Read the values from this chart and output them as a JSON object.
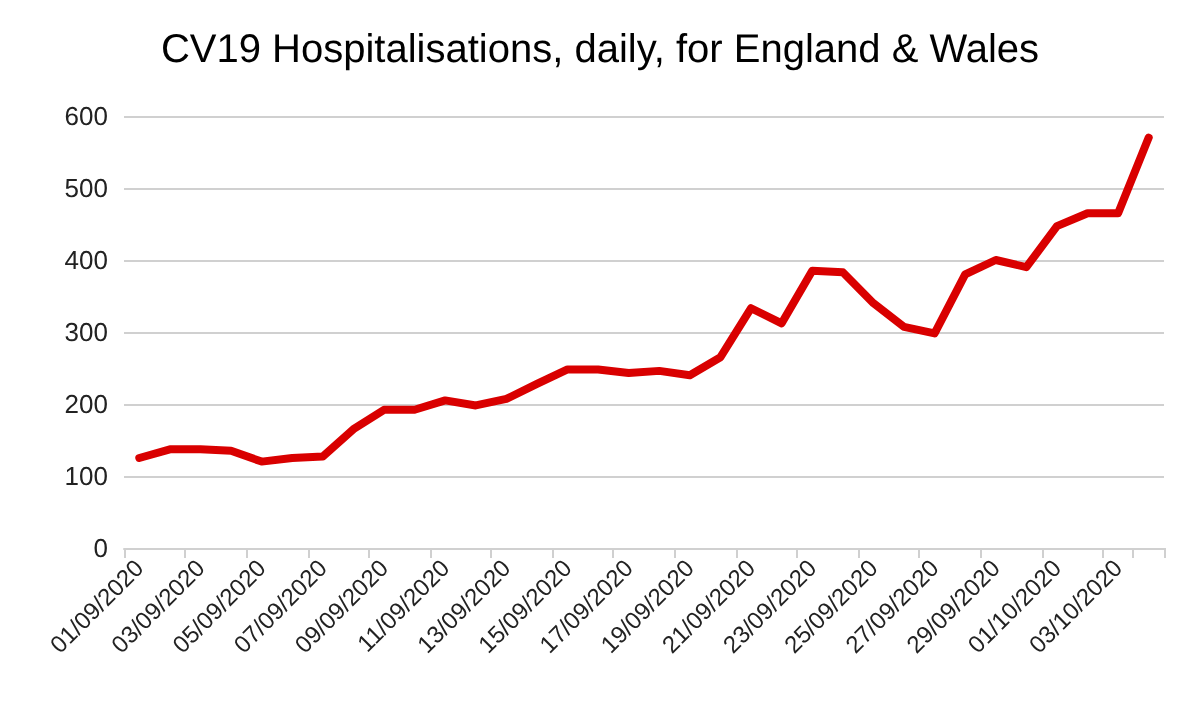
{
  "chart_data": {
    "type": "line",
    "title": "CV19 Hospitalisations, daily, for England & Wales",
    "categories": [
      "01/09/2020",
      null,
      "03/09/2020",
      null,
      "05/09/2020",
      null,
      "07/09/2020",
      null,
      "09/09/2020",
      null,
      "11/09/2020",
      null,
      "13/09/2020",
      null,
      "15/09/2020",
      null,
      "17/09/2020",
      null,
      "19/09/2020",
      null,
      "21/09/2020",
      null,
      "23/09/2020",
      null,
      "25/09/2020",
      null,
      "27/09/2020",
      null,
      "29/09/2020",
      null,
      "01/10/2020",
      null,
      "03/10/2020",
      null
    ],
    "series": [
      {
        "color": "#d90000",
        "values": [
          125,
          137,
          137,
          135,
          120,
          125,
          127,
          165,
          192,
          192,
          205,
          198,
          207,
          228,
          248,
          248,
          243,
          246,
          240,
          265,
          333,
          312,
          385,
          383,
          340,
          307,
          298,
          380,
          400,
          390,
          447,
          465,
          465,
          570
        ]
      }
    ],
    "ylim": [
      0,
      600
    ],
    "yticks": [
      0,
      100,
      200,
      300,
      400,
      500,
      600
    ],
    "grid": "y",
    "marker": "none",
    "line_style": "solid"
  }
}
